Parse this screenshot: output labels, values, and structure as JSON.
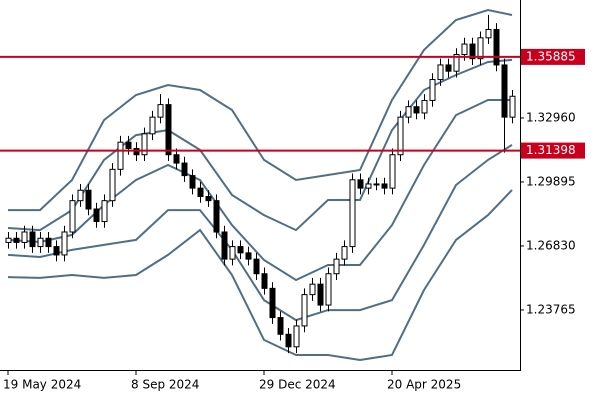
{
  "chart_data": {
    "type": "candlestick",
    "x": [
      0,
      1,
      2,
      3,
      4,
      5,
      6,
      7,
      8,
      9,
      10,
      11,
      12,
      13,
      14,
      15,
      16,
      17,
      18,
      19,
      20,
      21,
      22,
      23,
      24,
      25,
      26,
      27,
      28,
      29,
      30,
      31,
      32,
      33,
      34,
      35,
      36,
      37,
      38,
      39,
      40,
      41,
      42,
      43,
      44,
      45,
      46,
      47,
      48,
      49,
      50,
      51,
      52,
      53,
      54,
      55,
      56,
      57,
      58,
      59,
      60,
      61,
      62,
      63
    ],
    "open": [
      1.27,
      1.272,
      1.27,
      1.275,
      1.268,
      1.272,
      1.268,
      1.264,
      1.275,
      1.29,
      1.295,
      1.286,
      1.28,
      1.29,
      1.305,
      1.318,
      1.315,
      1.312,
      1.322,
      1.33,
      1.336,
      1.312,
      1.308,
      1.302,
      1.296,
      1.292,
      1.29,
      1.275,
      1.262,
      1.268,
      1.265,
      1.262,
      1.255,
      1.248,
      1.234,
      1.226,
      1.22,
      1.23,
      1.245,
      1.25,
      1.24,
      1.255,
      1.262,
      1.268,
      1.3,
      1.296,
      1.298,
      1.298,
      1.296,
      1.312,
      1.33,
      1.335,
      1.332,
      1.338,
      1.348,
      1.355,
      1.352,
      1.36,
      1.365,
      1.358,
      1.368,
      1.372,
      1.355,
      1.33
    ],
    "high": [
      1.275,
      1.275,
      1.278,
      1.278,
      1.275,
      1.275,
      1.271,
      1.278,
      1.293,
      1.298,
      1.298,
      1.289,
      1.293,
      1.308,
      1.321,
      1.321,
      1.318,
      1.325,
      1.333,
      1.341,
      1.339,
      1.315,
      1.311,
      1.305,
      1.299,
      1.295,
      1.293,
      1.278,
      1.271,
      1.271,
      1.268,
      1.265,
      1.258,
      1.251,
      1.237,
      1.229,
      1.233,
      1.248,
      1.253,
      1.253,
      1.258,
      1.265,
      1.271,
      1.303,
      1.303,
      1.301,
      1.301,
      1.301,
      1.315,
      1.333,
      1.338,
      1.338,
      1.341,
      1.351,
      1.358,
      1.358,
      1.363,
      1.368,
      1.368,
      1.371,
      1.379,
      1.375,
      1.358,
      1.343
    ],
    "low": [
      1.267,
      1.267,
      1.267,
      1.265,
      1.265,
      1.265,
      1.261,
      1.261,
      1.272,
      1.287,
      1.283,
      1.277,
      1.277,
      1.287,
      1.302,
      1.312,
      1.309,
      1.309,
      1.319,
      1.327,
      1.309,
      1.305,
      1.299,
      1.293,
      1.289,
      1.287,
      1.272,
      1.259,
      1.259,
      1.262,
      1.259,
      1.252,
      1.245,
      1.231,
      1.223,
      1.217,
      1.217,
      1.227,
      1.242,
      1.237,
      1.237,
      1.252,
      1.259,
      1.265,
      1.293,
      1.293,
      1.295,
      1.293,
      1.293,
      1.309,
      1.327,
      1.329,
      1.329,
      1.335,
      1.345,
      1.349,
      1.349,
      1.357,
      1.355,
      1.355,
      1.365,
      1.352,
      1.313,
      1.327
    ],
    "close": [
      1.272,
      1.27,
      1.275,
      1.268,
      1.272,
      1.268,
      1.264,
      1.275,
      1.29,
      1.295,
      1.286,
      1.28,
      1.29,
      1.305,
      1.318,
      1.315,
      1.312,
      1.322,
      1.33,
      1.336,
      1.312,
      1.308,
      1.302,
      1.296,
      1.292,
      1.29,
      1.275,
      1.262,
      1.268,
      1.265,
      1.262,
      1.255,
      1.248,
      1.234,
      1.226,
      1.22,
      1.23,
      1.245,
      1.25,
      1.24,
      1.255,
      1.262,
      1.268,
      1.3,
      1.296,
      1.298,
      1.298,
      1.296,
      1.312,
      1.33,
      1.335,
      1.332,
      1.338,
      1.348,
      1.355,
      1.352,
      1.36,
      1.365,
      1.358,
      1.368,
      1.372,
      1.355,
      1.33,
      1.34
    ],
    "bands": [
      {
        "color": "#4f6f86",
        "x": [
          0,
          4,
          8,
          12,
          16,
          20,
          24,
          28,
          32,
          36,
          40,
          44,
          48,
          52,
          56,
          60,
          63
        ],
        "values": [
          1.2855,
          1.2855,
          1.2999,
          1.3286,
          1.3406,
          1.3454,
          1.343,
          1.3334,
          1.3095,
          1.2999,
          1.3023,
          1.3047,
          1.3382,
          1.3622,
          1.3765,
          1.3813,
          1.3789
        ]
      },
      {
        "color": "#4f6f86",
        "x": [
          0,
          4,
          8,
          12,
          16,
          20,
          24,
          28,
          32,
          36,
          40,
          44,
          48,
          52,
          56,
          60,
          63
        ],
        "values": [
          1.2769,
          1.2759,
          1.2855,
          1.3095,
          1.3214,
          1.3238,
          1.3143,
          1.2927,
          1.2831,
          1.2759,
          1.2903,
          1.2903,
          1.3238,
          1.343,
          1.3502,
          1.3564,
          1.3574
        ]
      },
      {
        "color": "#4f6f86",
        "x": [
          0,
          4,
          8,
          12,
          16,
          20,
          24,
          28,
          32,
          36,
          40,
          44,
          48,
          52,
          56,
          60,
          63
        ],
        "values": [
          1.2712,
          1.2702,
          1.2736,
          1.2879,
          1.2999,
          1.3071,
          1.2999,
          1.2783,
          1.2616,
          1.252,
          1.2592,
          1.2592,
          1.2783,
          1.3071,
          1.331,
          1.3382,
          1.3382
        ]
      },
      {
        "color": "#4f6f86",
        "x": [
          0,
          4,
          8,
          12,
          16,
          20,
          24,
          28,
          32,
          36,
          40,
          44,
          48,
          52,
          56,
          60,
          63
        ],
        "values": [
          1.264,
          1.263,
          1.2664,
          1.2688,
          1.2712,
          1.2855,
          1.2855,
          1.2664,
          1.2424,
          1.2328,
          1.2376,
          1.2376,
          1.2424,
          1.2688,
          1.2975,
          1.3095,
          1.3167
        ]
      },
      {
        "color": "#4f6f86",
        "x": [
          0,
          4,
          8,
          12,
          16,
          20,
          24,
          28,
          32,
          36,
          40,
          44,
          48,
          52,
          56,
          60,
          63
        ],
        "values": [
          1.2534,
          1.253,
          1.2544,
          1.253,
          1.2544,
          1.264,
          1.2759,
          1.2544,
          1.2233,
          1.2161,
          1.2161,
          1.2137,
          1.2161,
          1.2472,
          1.2712,
          1.2831,
          1.2951
        ]
      }
    ],
    "levels": [
      {
        "value": 1.35885,
        "label": "1.35885"
      },
      {
        "value": 1.31398,
        "label": "1.31398"
      }
    ],
    "level_color": "#c8001e",
    "xlim": [
      -1,
      64
    ],
    "ylim": [
      1.2089,
      1.3861
    ],
    "xticks": [
      {
        "value": 0,
        "label": "19 May 2024"
      },
      {
        "value": 16,
        "label": "8 Sep 2024"
      },
      {
        "value": 32,
        "label": "29 Dec 2024"
      },
      {
        "value": 48,
        "label": "20 Apr 2025"
      }
    ],
    "yticks": [
      {
        "value": 1.23765,
        "label": "1.23765"
      },
      {
        "value": 1.2683,
        "label": "1.26830"
      },
      {
        "value": 1.29895,
        "label": "1.29895"
      },
      {
        "value": 1.3296,
        "label": "1.32960"
      }
    ]
  }
}
